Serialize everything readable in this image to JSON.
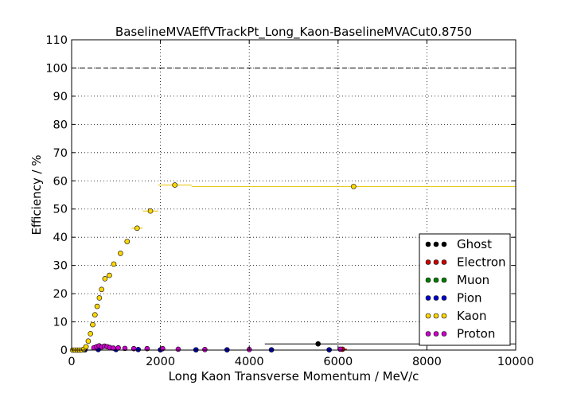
{
  "chart_data": {
    "type": "scatter",
    "title": "BaselineMVAEffVTrackPt_Long_Kaon-BaselineMVACut0.8750",
    "xlabel": "Long Kaon Transverse Momentum / MeV/c",
    "ylabel": "Efficiency / %",
    "xlim": [
      0,
      10000
    ],
    "ylim": [
      0,
      110
    ],
    "xticks": [
      0,
      2000,
      4000,
      6000,
      8000,
      10000
    ],
    "yticks": [
      0,
      10,
      20,
      30,
      40,
      50,
      60,
      70,
      80,
      90,
      100,
      110
    ],
    "reference_line": 100,
    "legend_position": "lower-right",
    "series": [
      {
        "name": "Ghost",
        "color": "#000000",
        "points": [
          {
            "x": 5550,
            "y": 2.2,
            "xerr_lo": 1200,
            "xerr_hi": 4450
          }
        ]
      },
      {
        "name": "Electron",
        "color": "#cc0000",
        "points": [
          {
            "x": 6100,
            "y": 0.3,
            "xerr_lo": 100,
            "xerr_hi": 100
          }
        ]
      },
      {
        "name": "Muon",
        "color": "#008000",
        "points": []
      },
      {
        "name": "Pion",
        "color": "#0000cc",
        "points": [
          {
            "x": 300,
            "y": 0.1
          },
          {
            "x": 600,
            "y": 0.2
          },
          {
            "x": 1000,
            "y": 0.2
          },
          {
            "x": 1500,
            "y": 0.2
          },
          {
            "x": 2000,
            "y": 0.1
          },
          {
            "x": 2800,
            "y": 0.1
          },
          {
            "x": 3500,
            "y": 0.1
          },
          {
            "x": 4500,
            "y": 0.1
          },
          {
            "x": 5800,
            "y": 0.1
          }
        ]
      },
      {
        "name": "Kaon",
        "color": "#ffd700",
        "points": [
          {
            "x": 25,
            "y": 0
          },
          {
            "x": 75,
            "y": 0
          },
          {
            "x": 125,
            "y": 0
          },
          {
            "x": 175,
            "y": 0
          },
          {
            "x": 225,
            "y": 0
          },
          {
            "x": 275,
            "y": 0.3
          },
          {
            "x": 325,
            "y": 1.2
          },
          {
            "x": 375,
            "y": 3.2
          },
          {
            "x": 425,
            "y": 5.8
          },
          {
            "x": 475,
            "y": 9.0
          },
          {
            "x": 525,
            "y": 12.5
          },
          {
            "x": 575,
            "y": 15.5
          },
          {
            "x": 625,
            "y": 18.5
          },
          {
            "x": 675,
            "y": 21.5
          },
          {
            "x": 750,
            "y": 25.3
          },
          {
            "x": 850,
            "y": 26.5
          },
          {
            "x": 950,
            "y": 30.5
          },
          {
            "x": 1100,
            "y": 34.3
          },
          {
            "x": 1250,
            "y": 38.5
          },
          {
            "x": 1475,
            "y": 43.2,
            "xerr_lo": 125,
            "xerr_hi": 125
          },
          {
            "x": 1775,
            "y": 49.3,
            "xerr_lo": 175,
            "xerr_hi": 175
          },
          {
            "x": 2325,
            "y": 58.5,
            "xerr_lo": 375,
            "xerr_hi": 375
          },
          {
            "x": 6350,
            "y": 58.0,
            "xerr_lo": 3650,
            "xerr_hi": 3650
          }
        ]
      },
      {
        "name": "Proton",
        "color": "#cc00cc",
        "points": [
          {
            "x": 500,
            "y": 0.8
          },
          {
            "x": 560,
            "y": 1.2
          },
          {
            "x": 620,
            "y": 1.5
          },
          {
            "x": 680,
            "y": 1.1
          },
          {
            "x": 740,
            "y": 1.4
          },
          {
            "x": 800,
            "y": 1.2
          },
          {
            "x": 860,
            "y": 0.9
          },
          {
            "x": 940,
            "y": 0.7
          },
          {
            "x": 1050,
            "y": 0.8
          },
          {
            "x": 1200,
            "y": 0.6
          },
          {
            "x": 1400,
            "y": 0.5
          },
          {
            "x": 1700,
            "y": 0.5
          },
          {
            "x": 2050,
            "y": 0.5
          },
          {
            "x": 2400,
            "y": 0.3
          },
          {
            "x": 3000,
            "y": 0.2
          },
          {
            "x": 4000,
            "y": 0.2
          },
          {
            "x": 6050,
            "y": 0.3
          }
        ]
      }
    ]
  }
}
